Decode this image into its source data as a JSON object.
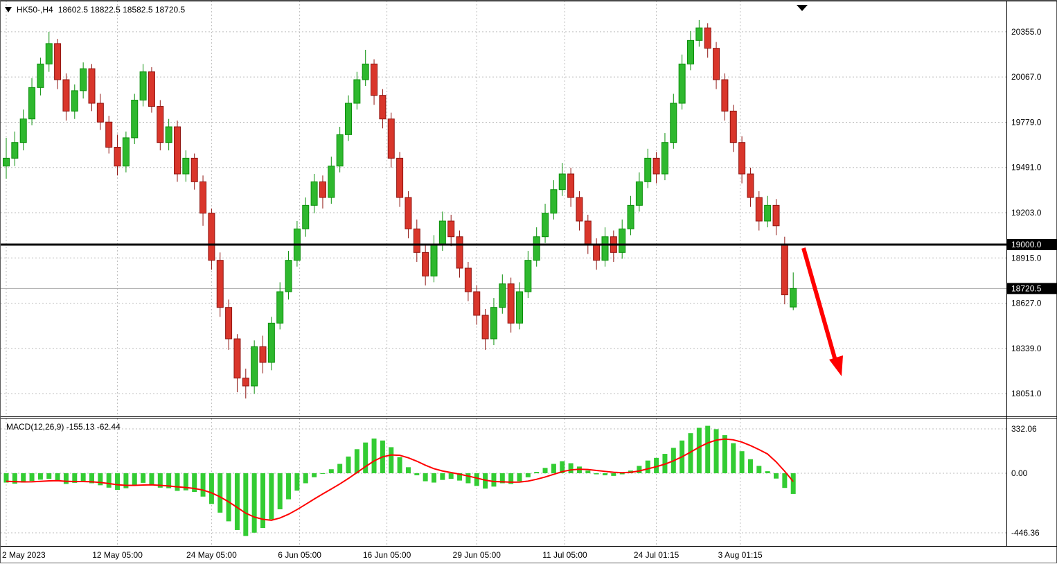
{
  "header": {
    "symbol_timeframe": "HK50-,H4",
    "ohlc_values": "18602.5 18822.5 18582.5 18720.5"
  },
  "icons": {
    "symbol_marker": "triangle-down",
    "chart_shift_marker": "triangle-down"
  },
  "colors": {
    "background": "#ffffff",
    "grid": "#bdbdbd",
    "bull": "#2eb82e",
    "bull_border": "#0a8f0a",
    "bear": "#d9362b",
    "bear_border": "#8f1410",
    "macd_histogram": "#33cc33",
    "signal_line": "#ff0000",
    "level_line": "#000000",
    "bid_line": "#a8a8a8",
    "arrow": "#ff0000",
    "label_bg": "#000000",
    "label_text": "#ffffff"
  },
  "chart_data": {
    "type": "candlestick",
    "symbol": "HK50-",
    "timeframe": "H4",
    "last_ohlc": {
      "open": 18602.5,
      "high": 18822.5,
      "low": 18582.5,
      "close": 18720.5
    },
    "price_axis": {
      "ticks": [
        20355.0,
        20067.0,
        19779.0,
        19491.0,
        19203.0,
        18915.0,
        18627.0,
        18339.0,
        18051.0
      ],
      "special_labels": [
        {
          "price": 19000.0,
          "label": "19000.0",
          "kind": "level"
        },
        {
          "price": 18720.5,
          "label": "18720.5",
          "kind": "bid"
        }
      ],
      "ylim": [
        17906,
        20553
      ]
    },
    "time_axis": {
      "labels": [
        {
          "label": "2 May 2023",
          "i": 0,
          "align": "left"
        },
        {
          "label": "12 May 05:00",
          "i": 13
        },
        {
          "label": "24 May 05:00",
          "i": 24
        },
        {
          "label": "6 Jun 05:00",
          "i": 34.3
        },
        {
          "label": "16 Jun 05:00",
          "i": 44.5
        },
        {
          "label": "29 Jun 05:00",
          "i": 55
        },
        {
          "label": "11 Jul 05:00",
          "i": 65.3
        },
        {
          "label": "24 Jul 01:15",
          "i": 76
        },
        {
          "label": "3 Aug 01:15",
          "i": 85.8
        }
      ]
    },
    "horizontal_line": {
      "price": 19000.0
    },
    "trend_arrow": {
      "direction": "down-right",
      "from_price": 19000.0,
      "to_price": 18200.0
    },
    "candles": [
      [
        19500,
        19680,
        19420,
        19550
      ],
      [
        19550,
        19720,
        19500,
        19650
      ],
      [
        19650,
        19860,
        19600,
        19800
      ],
      [
        19800,
        20060,
        19760,
        20000
      ],
      [
        20000,
        20190,
        19950,
        20150
      ],
      [
        20150,
        20355,
        20100,
        20280
      ],
      [
        20280,
        20310,
        19990,
        20050
      ],
      [
        20050,
        20090,
        19790,
        19850
      ],
      [
        19850,
        20020,
        19800,
        19980
      ],
      [
        19980,
        20160,
        19930,
        20120
      ],
      [
        20120,
        20150,
        19850,
        19900
      ],
      [
        19900,
        19960,
        19730,
        19780
      ],
      [
        19780,
        19820,
        19580,
        19620
      ],
      [
        19620,
        19700,
        19440,
        19500
      ],
      [
        19500,
        19720,
        19460,
        19680
      ],
      [
        19680,
        19960,
        19640,
        19920
      ],
      [
        19920,
        20150,
        19880,
        20100
      ],
      [
        20100,
        20130,
        19840,
        19880
      ],
      [
        19880,
        19920,
        19600,
        19650
      ],
      [
        19650,
        19800,
        19600,
        19750
      ],
      [
        19750,
        19790,
        19400,
        19450
      ],
      [
        19450,
        19600,
        19400,
        19550
      ],
      [
        19550,
        19580,
        19350,
        19400
      ],
      [
        19400,
        19440,
        19120,
        19200
      ],
      [
        19200,
        19230,
        18840,
        18900
      ],
      [
        18900,
        18950,
        18540,
        18600
      ],
      [
        18600,
        18650,
        18330,
        18400
      ],
      [
        18400,
        18430,
        18060,
        18150
      ],
      [
        18150,
        18210,
        18020,
        18100
      ],
      [
        18100,
        18390,
        18050,
        18350
      ],
      [
        18350,
        18420,
        18180,
        18250
      ],
      [
        18250,
        18540,
        18200,
        18500
      ],
      [
        18500,
        18760,
        18460,
        18700
      ],
      [
        18700,
        18960,
        18650,
        18900
      ],
      [
        18900,
        19150,
        18860,
        19100
      ],
      [
        19100,
        19300,
        19050,
        19250
      ],
      [
        19250,
        19450,
        19200,
        19400
      ],
      [
        19400,
        19440,
        19230,
        19300
      ],
      [
        19300,
        19560,
        19260,
        19500
      ],
      [
        19500,
        19750,
        19460,
        19700
      ],
      [
        19700,
        19950,
        19660,
        19900
      ],
      [
        19900,
        20100,
        19860,
        20050
      ],
      [
        20050,
        20240,
        20010,
        20150
      ],
      [
        20150,
        20180,
        19890,
        19950
      ],
      [
        19950,
        19990,
        19740,
        19800
      ],
      [
        19800,
        19840,
        19490,
        19550
      ],
      [
        19550,
        19590,
        19240,
        19300
      ],
      [
        19300,
        19340,
        19040,
        19100
      ],
      [
        19100,
        19160,
        18890,
        18950
      ],
      [
        18950,
        19000,
        18740,
        18800
      ],
      [
        18800,
        19060,
        18760,
        19000
      ],
      [
        19000,
        19210,
        18960,
        19150
      ],
      [
        19150,
        19190,
        18990,
        19050
      ],
      [
        19050,
        19090,
        18790,
        18850
      ],
      [
        18850,
        18890,
        18640,
        18700
      ],
      [
        18700,
        18740,
        18490,
        18550
      ],
      [
        18550,
        18590,
        18330,
        18400
      ],
      [
        18400,
        18660,
        18360,
        18600
      ],
      [
        18600,
        18810,
        18560,
        18750
      ],
      [
        18750,
        18790,
        18440,
        18500
      ],
      [
        18500,
        18760,
        18460,
        18700
      ],
      [
        18700,
        18960,
        18660,
        18900
      ],
      [
        18900,
        19110,
        18860,
        19050
      ],
      [
        19050,
        19260,
        19010,
        19200
      ],
      [
        19200,
        19410,
        19160,
        19350
      ],
      [
        19350,
        19520,
        19310,
        19450
      ],
      [
        19450,
        19490,
        19240,
        19300
      ],
      [
        19300,
        19340,
        19090,
        19150
      ],
      [
        19150,
        19190,
        18940,
        19000
      ],
      [
        19000,
        19040,
        18840,
        18900
      ],
      [
        18900,
        19110,
        18860,
        19050
      ],
      [
        19050,
        19090,
        18890,
        18950
      ],
      [
        18950,
        19160,
        18910,
        19100
      ],
      [
        19100,
        19310,
        19060,
        19250
      ],
      [
        19250,
        19460,
        19210,
        19400
      ],
      [
        19400,
        19610,
        19360,
        19550
      ],
      [
        19550,
        19590,
        19390,
        19450
      ],
      [
        19450,
        19710,
        19410,
        19650
      ],
      [
        19650,
        19960,
        19610,
        19900
      ],
      [
        19900,
        20210,
        19860,
        20150
      ],
      [
        20150,
        20360,
        20110,
        20300
      ],
      [
        20300,
        20430,
        20260,
        20380
      ],
      [
        20380,
        20410,
        20190,
        20250
      ],
      [
        20250,
        20290,
        19990,
        20050
      ],
      [
        20050,
        20090,
        19790,
        19850
      ],
      [
        19850,
        19890,
        19590,
        19650
      ],
      [
        19650,
        19690,
        19390,
        19450
      ],
      [
        19450,
        19490,
        19240,
        19300
      ],
      [
        19300,
        19340,
        19090,
        19150
      ],
      [
        19150,
        19310,
        19110,
        19250
      ],
      [
        19250,
        19290,
        19060,
        19120
      ],
      [
        19000,
        19050,
        18620,
        18680
      ],
      [
        18602.5,
        18822.5,
        18582.5,
        18720.5
      ]
    ],
    "indicator": {
      "name": "MACD(12,26,9)",
      "label": "MACD(12,26,9) -155.13 -62.44",
      "macd_last": -155.13,
      "signal_last": -62.44,
      "axis_ticks": [
        {
          "value": 332.06,
          "label": "332.06"
        },
        {
          "value": 0,
          "label": "0.00"
        },
        {
          "value": -446.36,
          "label": "-446.36"
        }
      ],
      "ylim": [
        -544.6,
        409.8
      ],
      "histogram": [
        -70,
        -78,
        -70,
        -58,
        -48,
        -42,
        -58,
        -80,
        -72,
        -62,
        -75,
        -90,
        -108,
        -125,
        -112,
        -90,
        -72,
        -85,
        -108,
        -112,
        -132,
        -128,
        -140,
        -175,
        -230,
        -295,
        -360,
        -425,
        -470,
        -445,
        -410,
        -345,
        -270,
        -195,
        -130,
        -75,
        -30,
        -5,
        30,
        70,
        125,
        180,
        230,
        260,
        245,
        195,
        120,
        45,
        -15,
        -60,
        -70,
        -50,
        -42,
        -55,
        -75,
        -95,
        -115,
        -100,
        -75,
        -80,
        -60,
        -30,
        10,
        40,
        70,
        90,
        75,
        50,
        20,
        -8,
        -15,
        -20,
        -8,
        20,
        55,
        95,
        115,
        145,
        190,
        245,
        300,
        340,
        355,
        330,
        285,
        225,
        165,
        105,
        55,
        15,
        -40,
        -110,
        -155.13
      ],
      "signal": [
        -60,
        -63,
        -65,
        -64,
        -61,
        -57,
        -56,
        -60,
        -62,
        -62,
        -64,
        -69,
        -77,
        -86,
        -91,
        -91,
        -88,
        -87,
        -91,
        -95,
        -102,
        -107,
        -114,
        -126,
        -147,
        -177,
        -214,
        -256,
        -299,
        -328,
        -345,
        -352,
        -335,
        -307,
        -272,
        -233,
        -193,
        -155,
        -118,
        -80,
        -39,
        5,
        50,
        92,
        123,
        137,
        134,
        116,
        90,
        60,
        34,
        17,
        5,
        -7,
        -21,
        -36,
        -52,
        -62,
        -64,
        -67,
        -66,
        -59,
        -45,
        -28,
        -8,
        12,
        25,
        30,
        28,
        21,
        14,
        7,
        4,
        7,
        17,
        33,
        49,
        68,
        93,
        123,
        158,
        195,
        227,
        248,
        256,
        250,
        233,
        207,
        177,
        144,
        85,
        15,
        -62.44
      ]
    }
  }
}
